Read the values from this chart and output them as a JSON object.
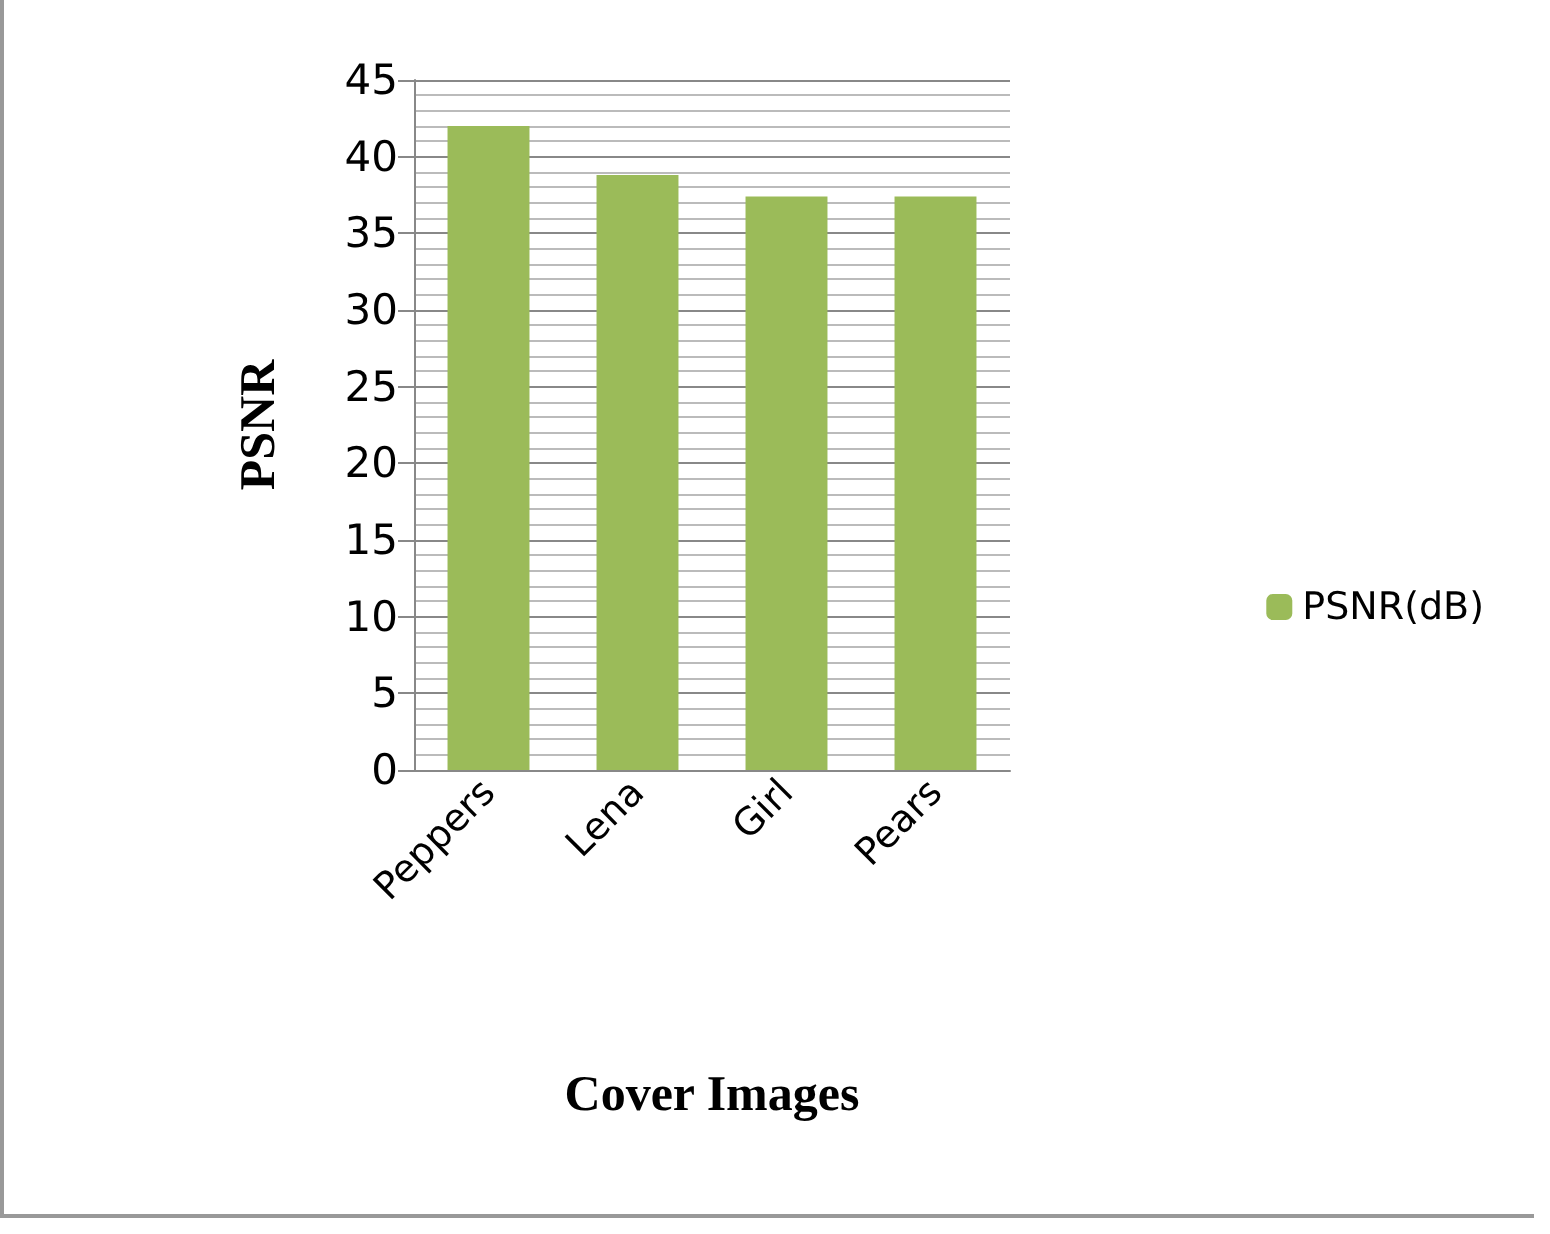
{
  "chart_data": {
    "type": "bar",
    "xlabel": "Cover Images",
    "ylabel": "PSNR",
    "categories": [
      "Peppers",
      "Lena",
      "Girl",
      "Pears"
    ],
    "series": [
      {
        "name": "PSNR(dB)",
        "color": "#9bbb59",
        "values": [
          42,
          38.8,
          37.4,
          37.4
        ]
      }
    ],
    "ylim": [
      0,
      45
    ],
    "yticks": [
      0,
      5,
      10,
      15,
      20,
      25,
      30,
      35,
      40,
      45
    ],
    "grid": true,
    "legend": "right"
  }
}
